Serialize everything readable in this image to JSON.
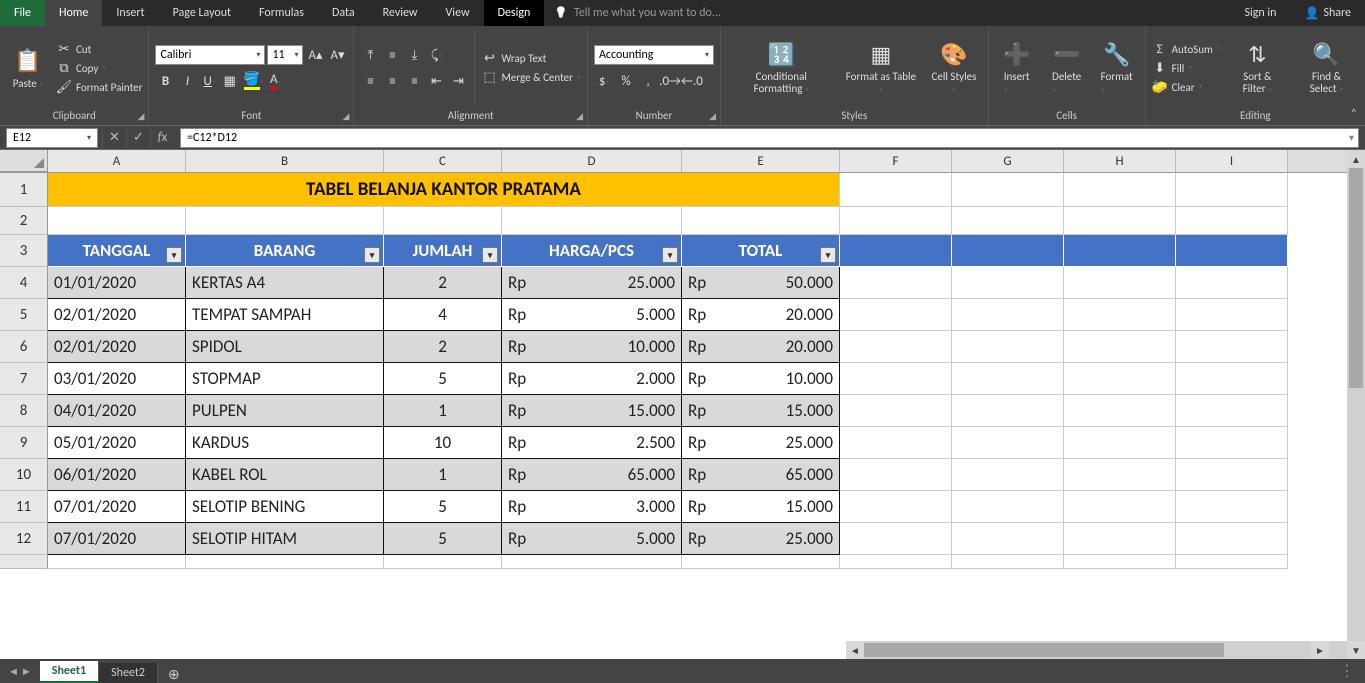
{
  "tabs": {
    "file": "File",
    "home": "Home",
    "insert": "Insert",
    "pageLayout": "Page Layout",
    "formulas": "Formulas",
    "data": "Data",
    "review": "Review",
    "view": "View",
    "design": "Design",
    "tellMe": "Tell me what you want to do...",
    "signIn": "Sign in",
    "share": "Share"
  },
  "ribbon": {
    "clipboard": {
      "label": "Clipboard",
      "paste": "Paste",
      "cut": "Cut",
      "copy": "Copy",
      "fmtPainter": "Format Painter"
    },
    "font": {
      "label": "Font",
      "name": "Calibri",
      "size": "11"
    },
    "alignment": {
      "label": "Alignment",
      "wrap": "Wrap Text",
      "merge": "Merge & Center"
    },
    "number": {
      "label": "Number",
      "format": "Accounting"
    },
    "styles": {
      "label": "Styles",
      "cond": "Conditional Formatting",
      "fmtTable": "Format as Table",
      "cellStyles": "Cell Styles"
    },
    "cells": {
      "label": "Cells",
      "insert": "Insert",
      "delete": "Delete",
      "format": "Format"
    },
    "editing": {
      "label": "Editing",
      "autosum": "AutoSum",
      "fill": "Fill",
      "clear": "Clear",
      "sort": "Sort & Filter",
      "find": "Find & Select"
    }
  },
  "nameBox": "E12",
  "formula": "=C12*D12",
  "columns": [
    "A",
    "B",
    "C",
    "D",
    "E",
    "F",
    "G",
    "H",
    "I"
  ],
  "colWidths": {
    "A": 138,
    "B": 198,
    "C": 118,
    "D": 180,
    "E": 158,
    "F": 112,
    "G": 112,
    "H": 112,
    "I": 112
  },
  "title": "TABEL BELANJA KANTOR PRATAMA",
  "headers": [
    "TANGGAL",
    "BARANG",
    "JUMLAH",
    "HARGA/PCS",
    "TOTAL"
  ],
  "rows": [
    {
      "n": 4,
      "tgl": "01/01/2020",
      "barang": "KERTAS A4",
      "jumlah": "2",
      "harga": "25.000",
      "total": "50.000",
      "dark": true
    },
    {
      "n": 5,
      "tgl": "02/01/2020",
      "barang": "TEMPAT SAMPAH",
      "jumlah": "4",
      "harga": "5.000",
      "total": "20.000",
      "dark": false
    },
    {
      "n": 6,
      "tgl": "02/01/2020",
      "barang": "SPIDOL",
      "jumlah": "2",
      "harga": "10.000",
      "total": "20.000",
      "dark": true
    },
    {
      "n": 7,
      "tgl": "03/01/2020",
      "barang": "STOPMAP",
      "jumlah": "5",
      "harga": "2.000",
      "total": "10.000",
      "dark": false
    },
    {
      "n": 8,
      "tgl": "04/01/2020",
      "barang": "PULPEN",
      "jumlah": "1",
      "harga": "15.000",
      "total": "15.000",
      "dark": true
    },
    {
      "n": 9,
      "tgl": "05/01/2020",
      "barang": "KARDUS",
      "jumlah": "10",
      "harga": "2.500",
      "total": "25.000",
      "dark": false
    },
    {
      "n": 10,
      "tgl": "06/01/2020",
      "barang": "KABEL ROL",
      "jumlah": "1",
      "harga": "65.000",
      "total": "65.000",
      "dark": true
    },
    {
      "n": 11,
      "tgl": "07/01/2020",
      "barang": "SELOTIP BENING",
      "jumlah": "5",
      "harga": "3.000",
      "total": "15.000",
      "dark": false
    },
    {
      "n": 12,
      "tgl": "07/01/2020",
      "barang": "SELOTIP HITAM",
      "jumlah": "5",
      "harga": "5.000",
      "total": "25.000",
      "dark": true
    }
  ],
  "currency": "Rp",
  "sheets": {
    "s1": "Sheet1",
    "s2": "Sheet2"
  },
  "colors": {
    "titleBg": "#ffc000",
    "headerBg": "#4472c4",
    "headerFg": "#ffffff",
    "bandDark": "#d9d9d9"
  }
}
